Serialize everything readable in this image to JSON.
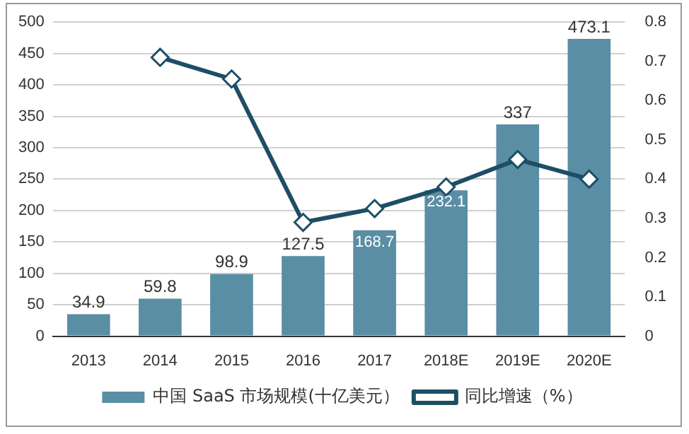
{
  "chart_data": {
    "type": "bar",
    "categories": [
      "2013",
      "2014",
      "2015",
      "2016",
      "2017",
      "2018E",
      "2019E",
      "2020E"
    ],
    "series": [
      {
        "name": "中国 SaaS 市场规模(十亿美元）",
        "color": "#5a8ea4",
        "values": [
          34.9,
          59.8,
          98.9,
          127.5,
          168.7,
          232.1,
          337,
          473.1
        ],
        "value_labels": [
          "34.9",
          "59.8",
          "98.9",
          "127.5",
          "168.7",
          "232.1",
          "337",
          "473.1"
        ]
      },
      {
        "name": "同比增速（%）",
        "type": "line",
        "axis": "y2",
        "color": "#1c4f66",
        "marker": "diamond",
        "values": [
          null,
          0.71,
          0.655,
          0.29,
          0.325,
          0.38,
          0.45,
          0.4
        ]
      }
    ],
    "ylim": [
      0,
      500
    ],
    "yticks": [
      0,
      50,
      100,
      150,
      200,
      250,
      300,
      350,
      400,
      450,
      500
    ],
    "y2lim": [
      0,
      0.8
    ],
    "y2ticks": [
      0,
      0.1,
      0.2,
      0.3,
      0.4,
      0.5,
      0.6,
      0.7,
      0.8
    ],
    "grid": "y",
    "legend": "bottom"
  }
}
